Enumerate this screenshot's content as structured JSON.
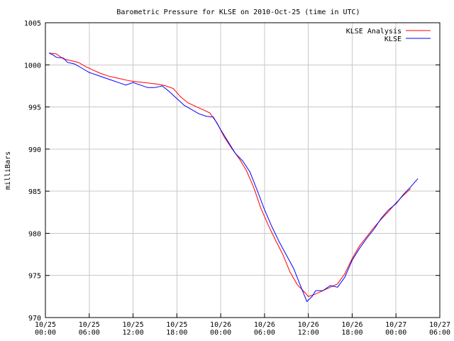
{
  "chart_data": {
    "type": "line",
    "title": "Barometric Pressure for KLSE on 2010-Oct-25 (time in UTC)",
    "xlabel": "",
    "ylabel": "milliBars",
    "xlim": [
      0,
      54
    ],
    "ylim": [
      970,
      1005
    ],
    "x_ticks": [
      {
        "value": 0,
        "line1": "10/25",
        "line2": "00:00"
      },
      {
        "value": 6,
        "line1": "10/25",
        "line2": "06:00"
      },
      {
        "value": 12,
        "line1": "10/25",
        "line2": "12:00"
      },
      {
        "value": 18,
        "line1": "10/25",
        "line2": "18:00"
      },
      {
        "value": 24,
        "line1": "10/26",
        "line2": "00:00"
      },
      {
        "value": 30,
        "line1": "10/26",
        "line2": "06:00"
      },
      {
        "value": 36,
        "line1": "10/26",
        "line2": "12:00"
      },
      {
        "value": 42,
        "line1": "10/26",
        "line2": "18:00"
      },
      {
        "value": 48,
        "line1": "10/27",
        "line2": "00:00"
      },
      {
        "value": 54,
        "line1": "10/27",
        "line2": "06:00"
      }
    ],
    "y_ticks": [
      970,
      975,
      980,
      985,
      990,
      995,
      1000,
      1005
    ],
    "legend_position": "top-right",
    "series": [
      {
        "name": "KLSE Analysis",
        "color": "#ff0000",
        "points": [
          [
            0.5,
            1001.4
          ],
          [
            1.5,
            1001.3
          ],
          [
            2.5,
            1000.7
          ],
          [
            3.5,
            1000.5
          ],
          [
            4.5,
            1000.3
          ],
          [
            5.5,
            999.8
          ],
          [
            6.5,
            999.4
          ],
          [
            7.5,
            999.0
          ],
          [
            8.5,
            998.7
          ],
          [
            9.5,
            998.5
          ],
          [
            10.5,
            998.3
          ],
          [
            11.5,
            998.1
          ],
          [
            12.5,
            998.0
          ],
          [
            13.5,
            997.9
          ],
          [
            14.5,
            997.8
          ],
          [
            15.5,
            997.7
          ],
          [
            16.5,
            997.5
          ],
          [
            17.5,
            997.2
          ],
          [
            18.5,
            996.2
          ],
          [
            19.5,
            995.5
          ],
          [
            20.5,
            995.1
          ],
          [
            21.5,
            994.7
          ],
          [
            22.5,
            994.3
          ],
          [
            23.5,
            993.1
          ],
          [
            24.5,
            991.4
          ],
          [
            25.5,
            990.1
          ],
          [
            26.5,
            988.9
          ],
          [
            27.5,
            987.5
          ],
          [
            28.5,
            985.5
          ],
          [
            29.5,
            983.0
          ],
          [
            30.5,
            981.0
          ],
          [
            31.5,
            979.2
          ],
          [
            32.5,
            977.5
          ],
          [
            33.5,
            975.4
          ],
          [
            34.5,
            973.9
          ],
          [
            35.5,
            973.0
          ],
          [
            36.0,
            972.5
          ],
          [
            37.0,
            972.8
          ],
          [
            38.0,
            973.2
          ],
          [
            39.0,
            973.6
          ],
          [
            40.0,
            974.0
          ],
          [
            41.0,
            975.2
          ],
          [
            42.0,
            977.0
          ],
          [
            43.0,
            978.5
          ],
          [
            44.0,
            979.6
          ],
          [
            45.0,
            980.7
          ],
          [
            46.0,
            981.7
          ],
          [
            47.0,
            982.6
          ],
          [
            48.0,
            983.6
          ],
          [
            49.0,
            984.5
          ],
          [
            50.0,
            985.3
          ]
        ]
      },
      {
        "name": "KLSE",
        "color": "#0000ff",
        "points": [
          [
            0.5,
            1001.4
          ],
          [
            1.0,
            1001.2
          ],
          [
            1.5,
            1000.9
          ],
          [
            2.5,
            1000.8
          ],
          [
            3.0,
            1000.3
          ],
          [
            4.0,
            1000.1
          ],
          [
            5.0,
            999.6
          ],
          [
            6.0,
            999.1
          ],
          [
            7.0,
            998.8
          ],
          [
            8.0,
            998.5
          ],
          [
            9.0,
            998.2
          ],
          [
            10.0,
            997.9
          ],
          [
            11.0,
            997.6
          ],
          [
            12.0,
            997.9
          ],
          [
            13.0,
            997.6
          ],
          [
            14.0,
            997.3
          ],
          [
            15.0,
            997.3
          ],
          [
            16.0,
            997.5
          ],
          [
            17.0,
            996.8
          ],
          [
            18.0,
            996.0
          ],
          [
            19.0,
            995.2
          ],
          [
            20.0,
            994.7
          ],
          [
            21.0,
            994.2
          ],
          [
            22.0,
            993.9
          ],
          [
            23.0,
            993.8
          ],
          [
            24.0,
            992.3
          ],
          [
            25.0,
            990.9
          ],
          [
            26.0,
            989.5
          ],
          [
            27.0,
            988.6
          ],
          [
            28.0,
            987.3
          ],
          [
            29.0,
            985.1
          ],
          [
            30.0,
            982.8
          ],
          [
            31.0,
            980.8
          ],
          [
            32.0,
            979.0
          ],
          [
            33.0,
            977.4
          ],
          [
            34.0,
            975.8
          ],
          [
            35.0,
            973.6
          ],
          [
            35.8,
            971.9
          ],
          [
            36.5,
            972.5
          ],
          [
            37.0,
            973.2
          ],
          [
            38.0,
            973.2
          ],
          [
            39.0,
            973.8
          ],
          [
            40.0,
            973.6
          ],
          [
            41.0,
            974.8
          ],
          [
            42.0,
            976.8
          ],
          [
            43.0,
            978.2
          ],
          [
            44.0,
            979.4
          ],
          [
            45.0,
            980.5
          ],
          [
            46.0,
            981.8
          ],
          [
            47.0,
            982.8
          ],
          [
            48.0,
            983.5
          ],
          [
            49.0,
            984.6
          ],
          [
            50.0,
            985.5
          ],
          [
            51.0,
            986.5
          ]
        ]
      }
    ]
  }
}
